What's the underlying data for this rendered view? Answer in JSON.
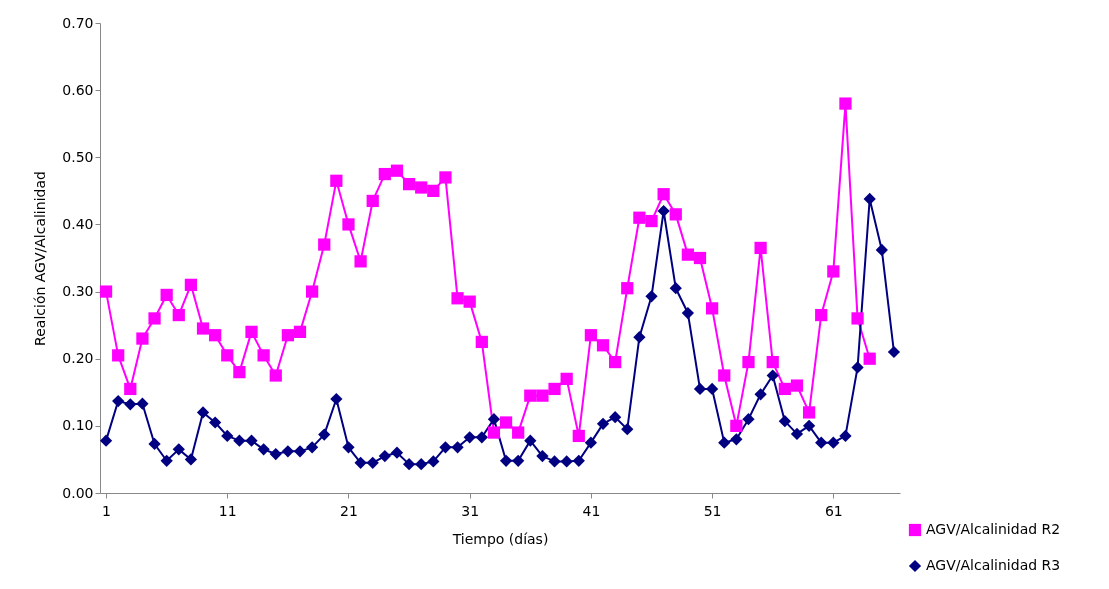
{
  "chart_data": {
    "type": "line",
    "xlabel": "Tiempo (días)",
    "ylabel": "Realción AGV/Alcalinidad",
    "x": [
      1,
      2,
      3,
      4,
      5,
      6,
      7,
      8,
      9,
      10,
      11,
      12,
      13,
      14,
      15,
      16,
      17,
      18,
      19,
      20,
      21,
      22,
      23,
      24,
      25,
      26,
      27,
      28,
      29,
      30,
      31,
      32,
      33,
      34,
      35,
      36,
      37,
      38,
      39,
      40,
      41,
      42,
      43,
      44,
      45,
      46,
      47,
      48,
      49,
      50,
      51,
      52,
      53,
      54,
      55,
      56,
      57,
      58,
      59,
      60,
      61,
      62,
      63,
      64,
      65,
      66
    ],
    "series": [
      {
        "name": "AGV/Alcalinidad R2",
        "color": "#ff00ff",
        "marker": "square",
        "values": [
          0.3,
          0.205,
          0.155,
          0.23,
          0.26,
          0.295,
          0.265,
          0.31,
          0.245,
          0.235,
          0.205,
          0.18,
          0.24,
          0.205,
          0.175,
          0.235,
          0.24,
          0.3,
          0.37,
          0.465,
          0.4,
          0.345,
          0.435,
          0.475,
          0.48,
          0.46,
          0.455,
          0.45,
          0.47,
          0.29,
          0.285,
          0.225,
          0.09,
          0.105,
          0.09,
          0.145,
          0.145,
          0.155,
          0.17,
          0.085,
          0.235,
          0.22,
          0.195,
          0.305,
          0.41,
          0.405,
          0.445,
          0.415,
          0.355,
          0.35,
          0.275,
          0.175,
          0.1,
          0.195,
          0.365,
          0.195,
          0.155,
          0.16,
          0.12,
          0.265,
          0.33,
          0.58,
          0.26,
          0.2,
          null,
          null
        ]
      },
      {
        "name": "AGV/Alcalinidad R3",
        "color": "#000080",
        "marker": "diamond",
        "values": [
          0.078,
          0.137,
          0.132,
          0.133,
          0.073,
          0.048,
          0.065,
          0.05,
          0.12,
          0.105,
          0.085,
          0.078,
          0.078,
          0.065,
          0.058,
          0.062,
          0.062,
          0.068,
          0.087,
          0.14,
          0.068,
          0.045,
          0.045,
          0.055,
          0.06,
          0.043,
          0.043,
          0.047,
          0.068,
          0.068,
          0.083,
          0.083,
          0.11,
          0.048,
          0.048,
          0.078,
          0.055,
          0.047,
          0.047,
          0.048,
          0.075,
          0.103,
          0.113,
          0.095,
          0.232,
          0.293,
          0.42,
          0.305,
          0.268,
          0.155,
          0.155,
          0.075,
          0.08,
          0.11,
          0.147,
          0.175,
          0.107,
          0.088,
          0.1,
          0.075,
          0.075,
          0.085,
          0.187,
          0.438,
          0.362,
          0.21
        ]
      }
    ],
    "xlim": [
      0.5,
      66.5
    ],
    "xticks": [
      1,
      11,
      21,
      31,
      41,
      51,
      61
    ],
    "ylim": [
      0,
      0.7
    ],
    "yticks": [
      {
        "value": 0,
        "label": "0.00"
      },
      {
        "value": 0.1,
        "label": "0.10"
      },
      {
        "value": 0.2,
        "label": "0.20"
      },
      {
        "value": 0.3,
        "label": "0.30"
      },
      {
        "value": 0.4,
        "label": "0.40"
      },
      {
        "value": 0.5,
        "label": "0.50"
      },
      {
        "value": 0.6,
        "label": "0.60"
      },
      {
        "value": 0.7,
        "label": "0.70"
      }
    ],
    "grid": false,
    "legend": "bottom right",
    "line_style": "solid"
  }
}
